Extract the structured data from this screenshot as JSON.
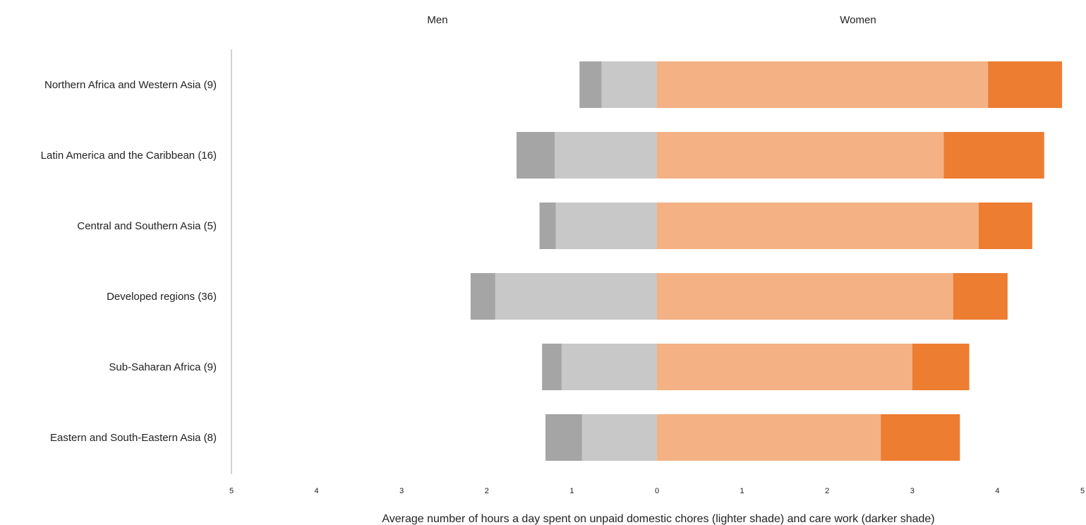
{
  "chart_data": {
    "type": "bar",
    "orientation": "horizontal",
    "layout": "butterfly-stacked",
    "left_header": "Men",
    "right_header": "Women",
    "xlabel": "Average number of hours a day spent on unpaid domestic chores (lighter shade) and care work (darker shade)",
    "xlim": [
      -5,
      5
    ],
    "tick_values": [
      -5,
      -4,
      -3,
      -2,
      -1,
      0,
      1,
      2,
      3,
      4,
      5
    ],
    "tick_labels": [
      "5",
      "4",
      "3",
      "2",
      "1",
      "0",
      "1",
      "2",
      "3",
      "4",
      "5"
    ],
    "categories": [
      "Northern Africa and Western Asia (9)",
      "Latin America and the Caribbean (16)",
      "Central and Southern Asia (5)",
      "Developed regions (36)",
      "Sub-Saharan Africa (9)",
      "Eastern and South-Eastern Asia (8)"
    ],
    "men": {
      "domestic_chores": [
        0.65,
        1.2,
        1.19,
        1.9,
        1.12,
        0.88
      ],
      "care_work": [
        0.26,
        0.45,
        0.19,
        0.29,
        0.23,
        0.43
      ]
    },
    "women": {
      "domestic_chores": [
        3.89,
        3.37,
        3.78,
        3.48,
        3.0,
        2.63
      ],
      "care_work": [
        0.87,
        1.18,
        0.63,
        0.64,
        0.67,
        0.93
      ]
    },
    "colors": {
      "men_domestic": "#c8c8c8",
      "men_care": "#a5a5a5",
      "women_domestic": "#f4b183",
      "women_care": "#ed7d31",
      "axis_line": "#a6a6a6"
    },
    "grid": false,
    "legend": "none"
  }
}
